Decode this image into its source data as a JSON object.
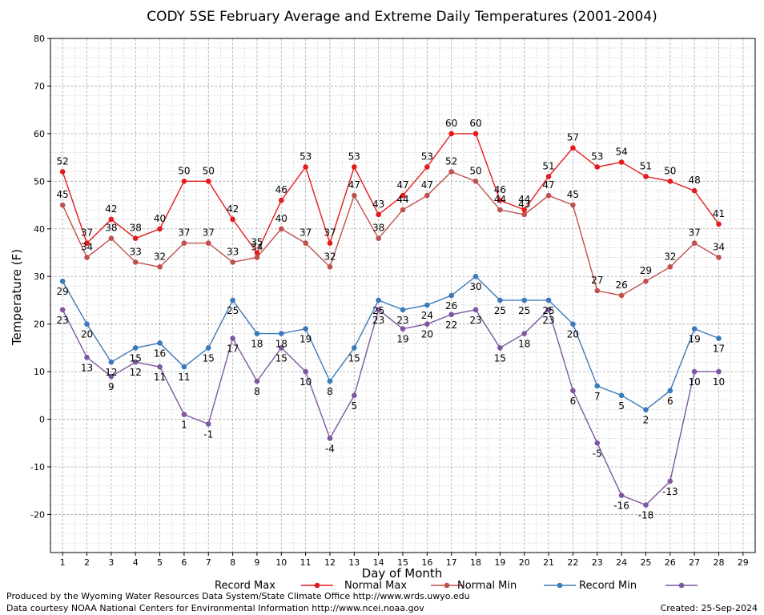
{
  "chart_data": {
    "type": "line",
    "title": "CODY 5SE February Average and Extreme Daily Temperatures (2001-2004)",
    "xlabel": "Day of Month",
    "ylabel": "Temperature (F)",
    "xlim": [
      0.5,
      29.5
    ],
    "ylim": [
      -28,
      80
    ],
    "x_ticks": [
      1,
      2,
      3,
      4,
      5,
      6,
      7,
      8,
      9,
      10,
      11,
      12,
      13,
      14,
      15,
      16,
      17,
      18,
      19,
      20,
      21,
      22,
      23,
      24,
      25,
      26,
      27,
      28,
      29
    ],
    "y_ticks": [
      -20,
      -10,
      0,
      10,
      20,
      30,
      40,
      50,
      60,
      70,
      80
    ],
    "x": [
      1,
      2,
      3,
      4,
      5,
      6,
      7,
      8,
      9,
      10,
      11,
      12,
      13,
      14,
      15,
      16,
      17,
      18,
      19,
      20,
      21,
      22,
      23,
      24,
      25,
      26,
      27,
      28
    ],
    "grid": true,
    "legend_position": "bottom",
    "series": [
      {
        "name": "Record Max",
        "color": "#e41a1c",
        "label_pos": "above",
        "values": [
          52,
          37,
          42,
          38,
          40,
          50,
          50,
          42,
          35,
          46,
          53,
          37,
          53,
          43,
          47,
          53,
          60,
          60,
          46,
          44,
          51,
          57,
          53,
          54,
          51,
          50,
          48,
          41
        ]
      },
      {
        "name": "Normal Max",
        "color": "#c0504d",
        "label_pos": "above",
        "values": [
          45,
          34,
          38,
          33,
          32,
          37,
          37,
          33,
          34,
          40,
          37,
          32,
          47,
          38,
          44,
          47,
          52,
          50,
          44,
          43,
          47,
          45,
          27,
          26,
          29,
          32,
          37,
          34
        ]
      },
      {
        "name": "Normal Min",
        "color": "#3a7ab8",
        "label_pos": "below",
        "values": [
          29,
          20,
          12,
          15,
          16,
          11,
          15,
          25,
          18,
          18,
          19,
          8,
          15,
          25,
          23,
          24,
          26,
          30,
          25,
          25,
          25,
          20,
          7,
          5,
          2,
          6,
          19,
          17
        ]
      },
      {
        "name": "Record Min",
        "color": "#7e57a0",
        "label_pos": "below",
        "values": [
          23,
          13,
          9,
          12,
          11,
          1,
          -1,
          17,
          8,
          15,
          10,
          -4,
          5,
          23,
          19,
          20,
          22,
          23,
          15,
          18,
          23,
          6,
          -5,
          -16,
          -18,
          -13,
          10,
          10
        ]
      }
    ]
  },
  "footer": {
    "line1": "Produced by the Wyoming Water Resources Data System/State Climate Office http://www.wrds.uwyo.edu",
    "line2": "Data courtesy NOAA National Centers for Environmental Information http://www.ncei.noaa.gov",
    "created": "Created: 25-Sep-2024"
  }
}
